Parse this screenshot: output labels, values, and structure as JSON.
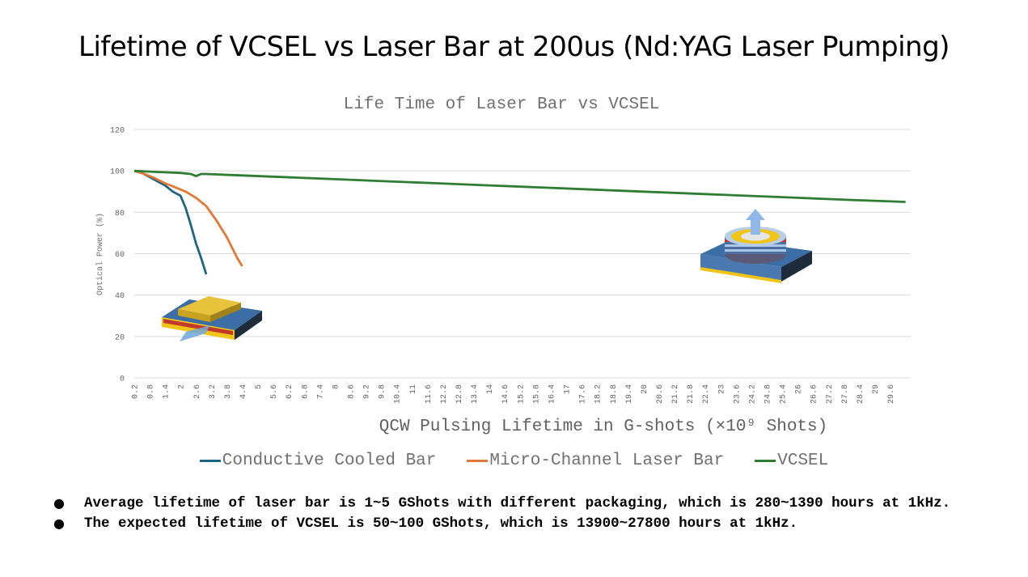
{
  "slide": {
    "title": "Lifetime of VCSEL vs Laser Bar at 200us (Nd:YAG Laser Pumping)",
    "bullets": [
      "Average lifetime of laser bar is 1~5 GShots with different packaging, which is 280~1390 hours at 1kHz.",
      "The expected lifetime of VCSEL is 50~100 GShots, which is 13900~27800 hours at 1kHz."
    ]
  },
  "chart_data": {
    "type": "line",
    "title": "Life Time of Laser Bar vs VCSEL",
    "xlabel": "QCW Pulsing Lifetime in G-shots (×10⁹ Shots)",
    "ylabel": "Optical Power (%)",
    "ylim": [
      0,
      120
    ],
    "yticks": [
      0,
      20,
      40,
      60,
      80,
      100,
      120
    ],
    "xlim": [
      0.2,
      30.4
    ],
    "xticks": [
      "0.2",
      "0.8",
      "1.4",
      "2",
      "2.6",
      "3.2",
      "3.8",
      "4.4",
      "5",
      "5.6",
      "6.2",
      "6.8",
      "7.4",
      "8",
      "8.6",
      "9.2",
      "9.8",
      "10.4",
      "11",
      "11.6",
      "12.2",
      "12.8",
      "13.4",
      "14",
      "14.6",
      "15.2",
      "15.8",
      "16.4",
      "17",
      "17.6",
      "18.2",
      "18.8",
      "19.4",
      "20",
      "20.6",
      "21.2",
      "21.8",
      "22.4",
      "23",
      "23.6",
      "24.2",
      "24.8",
      "25.4",
      "26",
      "26.6",
      "27.2",
      "27.8",
      "28.4",
      "29",
      "29.6"
    ],
    "grid": true,
    "legend_position": "bottom",
    "series": [
      {
        "name": "Conductive Cooled Bar",
        "color": "#1f6482",
        "x": [
          0.2,
          0.5,
          0.8,
          1.1,
          1.4,
          1.7,
          2.0,
          2.2,
          2.4,
          2.6,
          2.8,
          3.0
        ],
        "values": [
          100,
          99,
          97,
          95,
          93,
          90,
          88,
          82,
          74,
          65,
          58,
          50
        ]
      },
      {
        "name": "Micro-Channel Laser Bar",
        "color": "#e07836",
        "x": [
          0.2,
          0.6,
          1.0,
          1.4,
          1.8,
          2.2,
          2.6,
          3.0,
          3.4,
          3.8,
          4.2,
          4.4
        ],
        "values": [
          100,
          98.5,
          96.5,
          94,
          92,
          90,
          87,
          83,
          76,
          68,
          58,
          54
        ]
      },
      {
        "name": "VCSEL",
        "color": "#2e7d32",
        "x": [
          0.2,
          1,
          2,
          2.4,
          2.6,
          2.8,
          3,
          4,
          6,
          8,
          10,
          12,
          14,
          16,
          18,
          20,
          22,
          24,
          26,
          28,
          30.2
        ],
        "values": [
          100,
          99.5,
          99,
          98.5,
          97.5,
          98.5,
          98.5,
          98,
          97,
          96,
          95,
          94,
          93,
          92,
          91,
          90,
          89,
          88,
          87,
          86,
          85
        ]
      }
    ]
  },
  "illustrations": {
    "laser_bar_icon": "laser-bar-device-icon",
    "vcsel_icon": "vcsel-device-icon"
  }
}
